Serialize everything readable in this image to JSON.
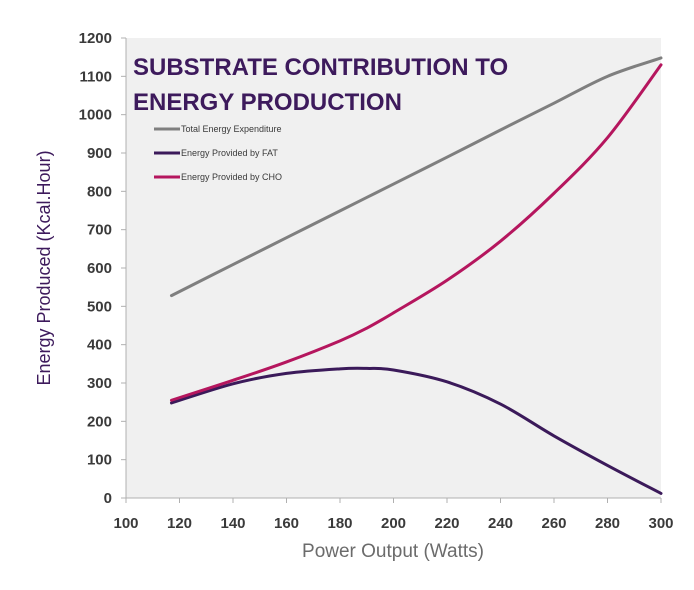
{
  "chart_data": {
    "type": "line",
    "title_lines": [
      "SUBSTRATE CONTRIBUTION TO",
      "ENERGY PRODUCTION"
    ],
    "xlabel": "Power Output (Watts)",
    "ylabel": "Energy Produced (Kcal.Hour)",
    "xlim": [
      100,
      300
    ],
    "ylim": [
      0,
      1200
    ],
    "x_ticks": [
      "100",
      "120",
      "140",
      "160",
      "180",
      "200",
      "220",
      "240",
      "260",
      "280",
      "300"
    ],
    "y_ticks": [
      "0",
      "100",
      "200",
      "300",
      "400",
      "500",
      "600",
      "700",
      "800",
      "900",
      "1000",
      "1100",
      "1200"
    ],
    "grid": false,
    "legend_position": "top-left",
    "x": [
      117,
      140,
      160,
      180,
      190,
      200,
      220,
      240,
      260,
      280,
      300
    ],
    "series": [
      {
        "name": "Total Energy Expenditure",
        "color": "#7f7f7f",
        "values": [
          528,
          609,
          679,
          749,
          784,
          819,
          889,
          960,
          1030,
          1100,
          1148
        ]
      },
      {
        "name": "Energy Provided by FAT",
        "color": "#3b1a5a",
        "values": [
          248,
          298,
          325,
          337,
          338,
          334,
          303,
          245,
          162,
          85,
          12
        ]
      },
      {
        "name": "Energy Provided by CHO",
        "color": "#b5165e",
        "values": [
          255,
          307,
          355,
          410,
          443,
          483,
          568,
          670,
          795,
          940,
          1130
        ]
      }
    ]
  }
}
